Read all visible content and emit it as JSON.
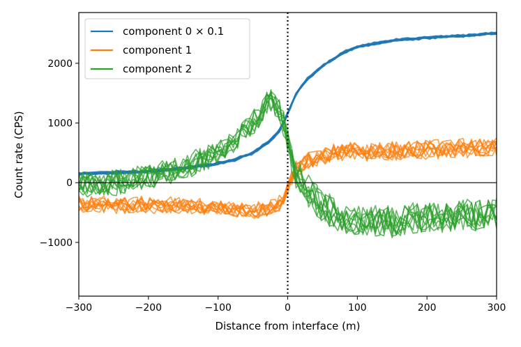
{
  "chart_data": {
    "type": "line",
    "title": "",
    "xlabel": "Distance from interface (m)",
    "ylabel": "Count rate (CPS)",
    "xlim": [
      -300,
      300
    ],
    "ylim": [
      -1900,
      2850
    ],
    "xticks": [
      -300,
      -200,
      -100,
      0,
      100,
      200,
      300
    ],
    "yticks": [
      -1000,
      0,
      1000,
      2000
    ],
    "xtick_labels": [
      "−300",
      "−200",
      "−100",
      "0",
      "100",
      "200",
      "300"
    ],
    "ytick_labels": [
      "−1000",
      "0",
      "1000",
      "2000"
    ],
    "reference_lines": {
      "horizontal_y": 0,
      "vertical_dotted_x": 0
    },
    "legend": {
      "position": "top-left",
      "entries": [
        "component 0 × 0.1",
        "component 1",
        "component 2"
      ]
    },
    "replicates_per_series": 10,
    "series": [
      {
        "name": "component 0 × 0.1",
        "color": "#1f77b4",
        "x": [
          -300,
          -250,
          -200,
          -150,
          -100,
          -75,
          -50,
          -25,
          -10,
          0,
          10,
          25,
          50,
          75,
          100,
          150,
          200,
          250,
          300
        ],
        "values": [
          150,
          170,
          190,
          240,
          320,
          390,
          500,
          700,
          900,
          1150,
          1450,
          1700,
          1950,
          2150,
          2280,
          2380,
          2430,
          2460,
          2500
        ]
      },
      {
        "name": "component 1",
        "color": "#ff7f0e",
        "x": [
          -300,
          -250,
          -200,
          -150,
          -100,
          -75,
          -50,
          -25,
          -10,
          0,
          10,
          25,
          50,
          75,
          100,
          150,
          200,
          250,
          300
        ],
        "values": [
          -350,
          -370,
          -380,
          -390,
          -420,
          -440,
          -480,
          -450,
          -350,
          -100,
          200,
          350,
          450,
          500,
          520,
          540,
          560,
          580,
          580
        ]
      },
      {
        "name": "component 2",
        "color": "#2ca02c",
        "x": [
          -300,
          -250,
          -200,
          -150,
          -100,
          -75,
          -50,
          -25,
          -10,
          0,
          10,
          25,
          50,
          75,
          100,
          150,
          200,
          250,
          300
        ],
        "values": [
          -50,
          0,
          100,
          250,
          500,
          700,
          1000,
          1400,
          1200,
          700,
          200,
          -100,
          -400,
          -550,
          -650,
          -650,
          -600,
          -550,
          -500
        ]
      }
    ]
  }
}
